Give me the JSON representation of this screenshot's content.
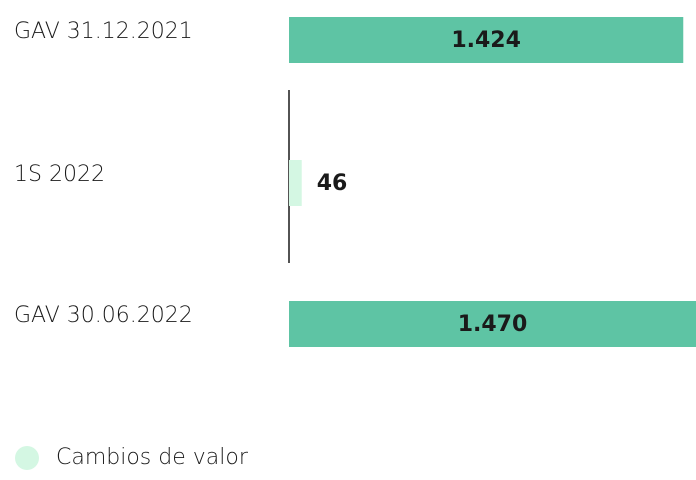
{
  "chart_data": {
    "type": "bar",
    "orientation": "horizontal",
    "categories": [
      "GAV 31.12.2021",
      "1S 2022",
      "GAV 30.06.2022"
    ],
    "values": [
      1424,
      46,
      1470
    ],
    "value_labels": [
      "1.424",
      "46",
      "1.470"
    ],
    "colors": [
      "#5ec4a4",
      "#d4f7e3",
      "#5ec4a4"
    ],
    "xlim": [
      0,
      1470
    ],
    "legend": {
      "label": "Cambios de valor",
      "color": "#d4f7e3"
    }
  }
}
